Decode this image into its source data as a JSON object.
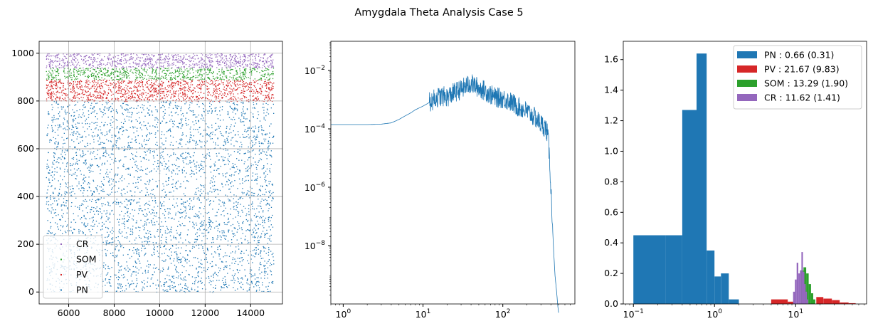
{
  "figure": {
    "title": "Amygdala Theta Analysis Case 5"
  },
  "chart_data": [
    {
      "type": "scatter",
      "xlim": [
        4700,
        15400
      ],
      "ylim": [
        -50,
        1050
      ],
      "grid": true,
      "x_ticks": [
        6000,
        8000,
        10000,
        12000,
        14000
      ],
      "x_tick_labels": [
        "6000",
        "8000",
        "10000",
        "12000",
        "14000"
      ],
      "y_ticks": [
        0,
        200,
        400,
        600,
        800,
        1000
      ],
      "y_tick_labels": [
        "0",
        "200",
        "400",
        "600",
        "800",
        "1000"
      ],
      "x_range": [
        5000,
        15000
      ],
      "legend": {
        "placement": "lower-left",
        "entries": [
          "CR",
          "SOM",
          "PV",
          "PN"
        ]
      },
      "series": [
        {
          "name": "PN",
          "color": "#1f77b4",
          "y_range": [
            0,
            800
          ],
          "density": 0.35
        },
        {
          "name": "PV",
          "color": "#d62728",
          "y_range": [
            800,
            890
          ],
          "density": 1.0
        },
        {
          "name": "SOM",
          "color": "#2ca02c",
          "y_range": [
            890,
            940
          ],
          "density": 1.0
        },
        {
          "name": "CR",
          "color": "#9467bd",
          "y_range": [
            940,
            1000
          ],
          "density": 1.0
        }
      ]
    },
    {
      "type": "line",
      "xscale": "log",
      "yscale": "log",
      "xlim": [
        0.7,
        800
      ],
      "ylim": [
        1e-10,
        0.1
      ],
      "grid": false,
      "x_tick_values": [
        1,
        10,
        100
      ],
      "x_tick_labels": [
        {
          "base": "10",
          "exp": "0"
        },
        {
          "base": "10",
          "exp": "1"
        },
        {
          "base": "10",
          "exp": "2"
        }
      ],
      "y_tick_values": [
        1e-08,
        1e-06,
        0.0001,
        0.01
      ],
      "y_tick_labels": [
        {
          "base": "10",
          "exp": "−8"
        },
        {
          "base": "10",
          "exp": "−6"
        },
        {
          "base": "10",
          "exp": "−4"
        },
        {
          "base": "10",
          "exp": "−2"
        }
      ],
      "color": "#1f77b4",
      "x": [
        0.7,
        1,
        1.5,
        2,
        3,
        4,
        5,
        6,
        7,
        8,
        10,
        12,
        15,
        18,
        20,
        25,
        30,
        35,
        40,
        45,
        50,
        60,
        70,
        80,
        100,
        120,
        150,
        200,
        250,
        300,
        330,
        350,
        370,
        390,
        410,
        430,
        450,
        470,
        490,
        500
      ],
      "y": [
        0.00014,
        0.00014,
        0.00014,
        0.00014,
        0.000145,
        0.00016,
        0.00021,
        0.00028,
        0.00035,
        0.00045,
        0.0006,
        0.0008,
        0.0012,
        0.0013,
        0.0012,
        0.0018,
        0.0022,
        0.003,
        0.0035,
        0.003,
        0.0025,
        0.002,
        0.0015,
        0.0012,
        0.0011,
        0.0009,
        0.0006,
        0.0004,
        0.00025,
        0.00015,
        0.00012,
        0.0001,
        5e-05,
        5e-06,
        2e-07,
        1e-08,
        1e-09,
        3e-10,
        8e-11,
        5e-11
      ],
      "noise_band": [
        12,
        420
      ]
    },
    {
      "type": "bar",
      "xscale": "log",
      "xlim": [
        0.075,
        75
      ],
      "ylim": [
        0,
        1.72
      ],
      "grid": false,
      "x_tick_values": [
        0.1,
        1,
        10
      ],
      "x_tick_labels": [
        {
          "base": "10",
          "exp": "−1"
        },
        {
          "base": "10",
          "exp": "0"
        },
        {
          "base": "10",
          "exp": "1"
        }
      ],
      "y_ticks": [
        0,
        0.2,
        0.4,
        0.6,
        0.8,
        1.0,
        1.2,
        1.4,
        1.6
      ],
      "y_tick_labels": [
        "0.0",
        "0.2",
        "0.4",
        "0.6",
        "0.8",
        "1.0",
        "1.2",
        "1.4",
        "1.6"
      ],
      "legend": {
        "placement": "top-right"
      },
      "series": [
        {
          "name": "PN : 0.66 (0.31)",
          "color": "#1f77b4",
          "bins": [
            [
              0.1,
              0.25,
              0.45
            ],
            [
              0.25,
              0.4,
              0.45
            ],
            [
              0.4,
              0.6,
              1.27
            ],
            [
              0.6,
              0.8,
              1.64
            ],
            [
              0.8,
              1.0,
              0.35
            ],
            [
              1.0,
              1.2,
              0.18
            ],
            [
              1.2,
              1.5,
              0.2
            ],
            [
              1.5,
              2.0,
              0.03
            ]
          ]
        },
        {
          "name": "PV : 21.67 (9.83)",
          "color": "#d62728",
          "bins": [
            [
              5.0,
              8.0,
              0.03
            ],
            [
              8.0,
              9.5,
              0.015
            ],
            [
              18.0,
              22.0,
              0.045
            ],
            [
              22.0,
              28.0,
              0.035
            ],
            [
              28.0,
              35.0,
              0.025
            ],
            [
              35.0,
              45.0,
              0.01
            ],
            [
              45.0,
              55.0,
              0.005
            ]
          ]
        },
        {
          "name": "SOM : 13.29 (1.90)",
          "color": "#2ca02c",
          "bins": [
            [
              11.5,
              12.5,
              0.22
            ],
            [
              12.5,
              13.5,
              0.24
            ],
            [
              13.5,
              14.5,
              0.2
            ],
            [
              14.5,
              15.5,
              0.13
            ],
            [
              15.5,
              16.5,
              0.07
            ],
            [
              16.5,
              17.5,
              0.03
            ]
          ]
        },
        {
          "name": "CR : 11.62 (1.41)",
          "color": "#9467bd",
          "bins": [
            [
              9.3,
              9.8,
              0.08
            ],
            [
              9.8,
              10.3,
              0.16
            ],
            [
              10.3,
              10.8,
              0.27
            ],
            [
              10.8,
              11.3,
              0.2
            ],
            [
              11.3,
              11.8,
              0.22
            ],
            [
              11.8,
              12.3,
              0.34
            ],
            [
              12.3,
              12.8,
              0.21
            ],
            [
              12.8,
              13.3,
              0.13
            ],
            [
              13.3,
              13.8,
              0.08
            ],
            [
              13.8,
              14.3,
              0.03
            ]
          ]
        }
      ]
    }
  ]
}
